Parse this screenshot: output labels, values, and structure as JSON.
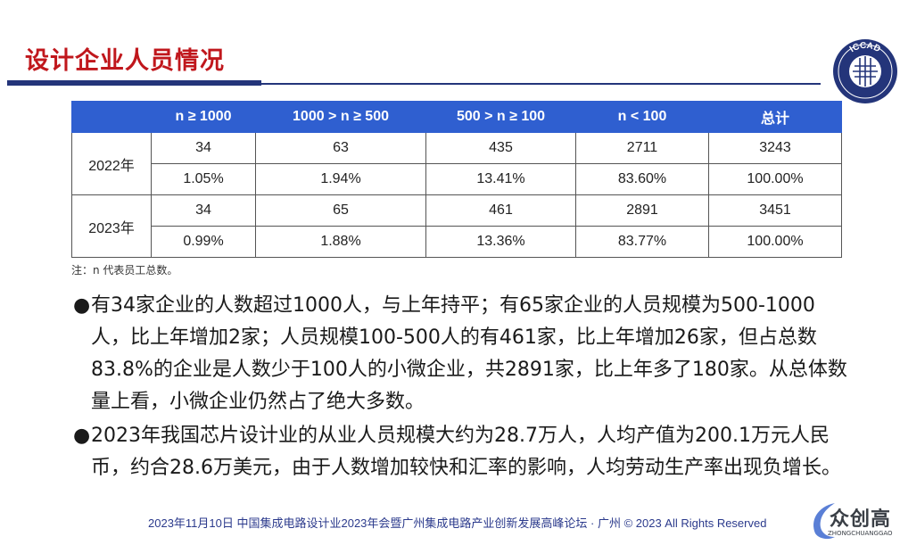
{
  "slide": {
    "title": "设计企业人员情况"
  },
  "logo": {
    "name": "ICCAD"
  },
  "table": {
    "headers": [
      "",
      "n ≥ 1000",
      "1000 > n ≥ 500",
      "500 > n ≥ 100",
      "n < 100",
      "总计"
    ],
    "rows": [
      {
        "year": "2022年",
        "counts": [
          "34",
          "63",
          "435",
          "2711",
          "3243"
        ],
        "shares": [
          "1.05%",
          "1.94%",
          "13.41%",
          "83.60%",
          "100.00%"
        ]
      },
      {
        "year": "2023年",
        "counts": [
          "34",
          "65",
          "461",
          "2891",
          "3451"
        ],
        "shares": [
          "0.99%",
          "1.88%",
          "13.36%",
          "83.77%",
          "100.00%"
        ]
      }
    ],
    "header_color": "#2f5fd0"
  },
  "note": "注：n 代表员工总数。",
  "bullets": [
    "有34家企业的人数超过1000人，与上年持平；有65家企业的人员规模为500-1000人，比上年增加2家；人员规模100-500人的有461家，比上年增加26家，但占总数83.8%的企业是人数少于100人的小微企业，共2891家，比上年多了180家。从总体数量上看，小微企业仍然占了绝大多数。",
    "2023年我国芯片设计业的从业人员规模大约为28.7万人，人均产值为200.1万元人民币，约合28.6万美元，由于人数增加较快和汇率的影响，人均劳动生产率出现负增长。"
  ],
  "footer": "2023年11月10日  中国集成电路设计业2023年会暨广州集成电路产业创新发展高峰论坛 · 广州 © 2023 All Rights Reserved",
  "watermark": {
    "main": "众创高",
    "sub": "ZHONGCHUANGGAO"
  },
  "colors": {
    "title": "#c0171c",
    "rule": "#24357a",
    "footer": "#2b3a8c"
  }
}
